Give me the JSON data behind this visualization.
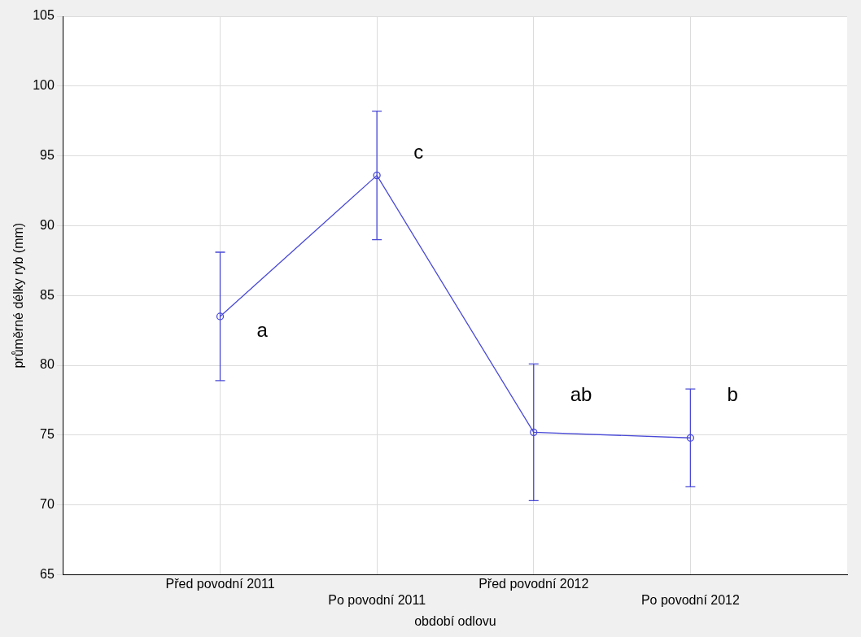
{
  "chart_data": {
    "type": "line",
    "xlabel": "období odlovu",
    "ylabel": "průměrné délky ryb (mm)",
    "categories": [
      "Před povodní 2011",
      "Po povodní 2011",
      "Před povodní 2012",
      "Po povodní 2012"
    ],
    "series": [
      {
        "color": "#4a4ad6",
        "values": [
          83.5,
          93.6,
          75.2,
          74.8
        ],
        "errors": [
          4.6,
          4.6,
          4.9,
          3.5
        ]
      }
    ],
    "ylim": [
      65,
      105
    ],
    "yticks": [
      65,
      70,
      75,
      80,
      85,
      90,
      95,
      100,
      105
    ],
    "grid": true,
    "legend": false,
    "marker": "circle",
    "line_style": "solid",
    "annotations": [
      {
        "text": "a",
        "x": "Před povodní 2011",
        "y": 82.4
      },
      {
        "text": "c",
        "x": "Po povodní 2011",
        "y": 95.2
      },
      {
        "text": "ab",
        "x": "Před povodní 2012",
        "y": 77.8
      },
      {
        "text": "b",
        "x": "Po povodní 2012",
        "y": 77.8
      }
    ]
  }
}
